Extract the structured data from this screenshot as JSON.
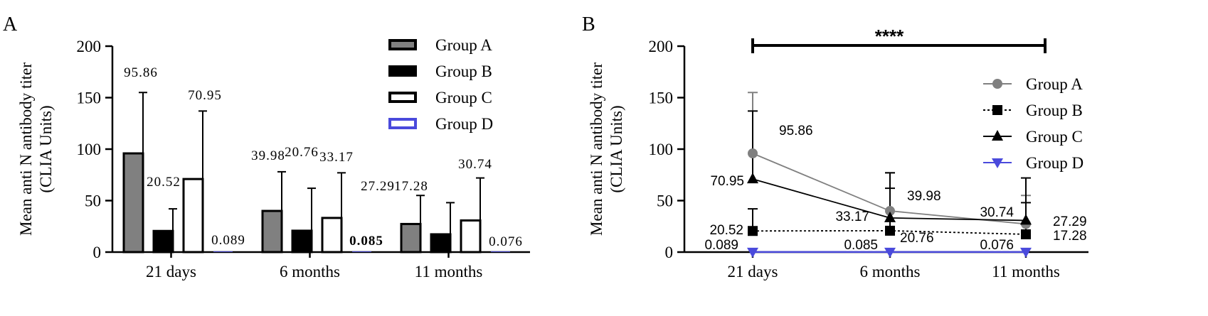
{
  "chart_data": [
    {
      "type": "bar",
      "panel_label": "A",
      "title": "",
      "xlabel": "",
      "ylabel_lines": [
        "Mean anti N antibody titer",
        "(CLIA Units)"
      ],
      "ylim": [
        0,
        200
      ],
      "yticks": [
        "0",
        "50",
        "100",
        "150",
        "200"
      ],
      "categories": [
        "21 days",
        "6 months",
        "11 months"
      ],
      "series": [
        {
          "name": "Group A",
          "values": [
            95.86,
            39.98,
            27.29
          ],
          "errors": [
            155,
            78,
            55
          ],
          "labels": [
            "95.86",
            "39.98",
            "27.29"
          ],
          "color": "#808080"
        },
        {
          "name": "Group B",
          "values": [
            20.52,
            20.76,
            17.28
          ],
          "errors": [
            42,
            62,
            48
          ],
          "labels": [
            "20.52",
            "20.76",
            "17.28"
          ],
          "color": "#000000"
        },
        {
          "name": "Group C",
          "values": [
            70.95,
            33.17,
            30.74
          ],
          "errors": [
            137,
            77,
            72
          ],
          "labels": [
            "70.95",
            "33.17",
            "30.74"
          ],
          "color": "#ffffff"
        },
        {
          "name": "Group D",
          "values": [
            0.089,
            0.085,
            0.076
          ],
          "errors": [
            null,
            null,
            null
          ],
          "labels": [
            "0.089",
            "0.085",
            "0.076"
          ],
          "color": "#4a4adc"
        }
      ],
      "legend_position": "top-right"
    },
    {
      "type": "line",
      "panel_label": "B",
      "title": "",
      "xlabel": "",
      "ylabel_lines": [
        "Mean anti N antibody titer",
        "(CLIA Units)"
      ],
      "ylim": [
        0,
        200
      ],
      "yticks": [
        "0",
        "50",
        "100",
        "150",
        "200"
      ],
      "categories": [
        "21 days",
        "6 months",
        "11 months"
      ],
      "significance": "****",
      "series": [
        {
          "name": "Group A",
          "values": [
            95.86,
            39.98,
            27.29
          ],
          "errors": [
            155,
            77,
            55
          ],
          "labels": [
            "95.86",
            "39.98",
            "27.29"
          ],
          "color": "#808080",
          "marker": "circle",
          "dash": "solid"
        },
        {
          "name": "Group B",
          "values": [
            20.52,
            20.76,
            17.28
          ],
          "errors": [
            42,
            62,
            48
          ],
          "labels": [
            "20.52",
            "20.76",
            "17.28"
          ],
          "color": "#000000",
          "marker": "square",
          "dash": "dotted"
        },
        {
          "name": "Group C",
          "values": [
            70.95,
            33.17,
            30.74
          ],
          "errors": [
            137,
            77,
            72
          ],
          "labels": [
            "70.95",
            "33.17",
            "30.74"
          ],
          "color": "#000000",
          "marker": "triangle-up",
          "dash": "solid"
        },
        {
          "name": "Group D",
          "values": [
            0.089,
            0.085,
            0.076
          ],
          "errors": [
            null,
            null,
            null
          ],
          "labels": [
            "0.089",
            "0.085",
            "0.076"
          ],
          "color": "#4a4adc",
          "marker": "triangle-down",
          "dash": "solid"
        }
      ],
      "legend_position": "top-right"
    }
  ]
}
